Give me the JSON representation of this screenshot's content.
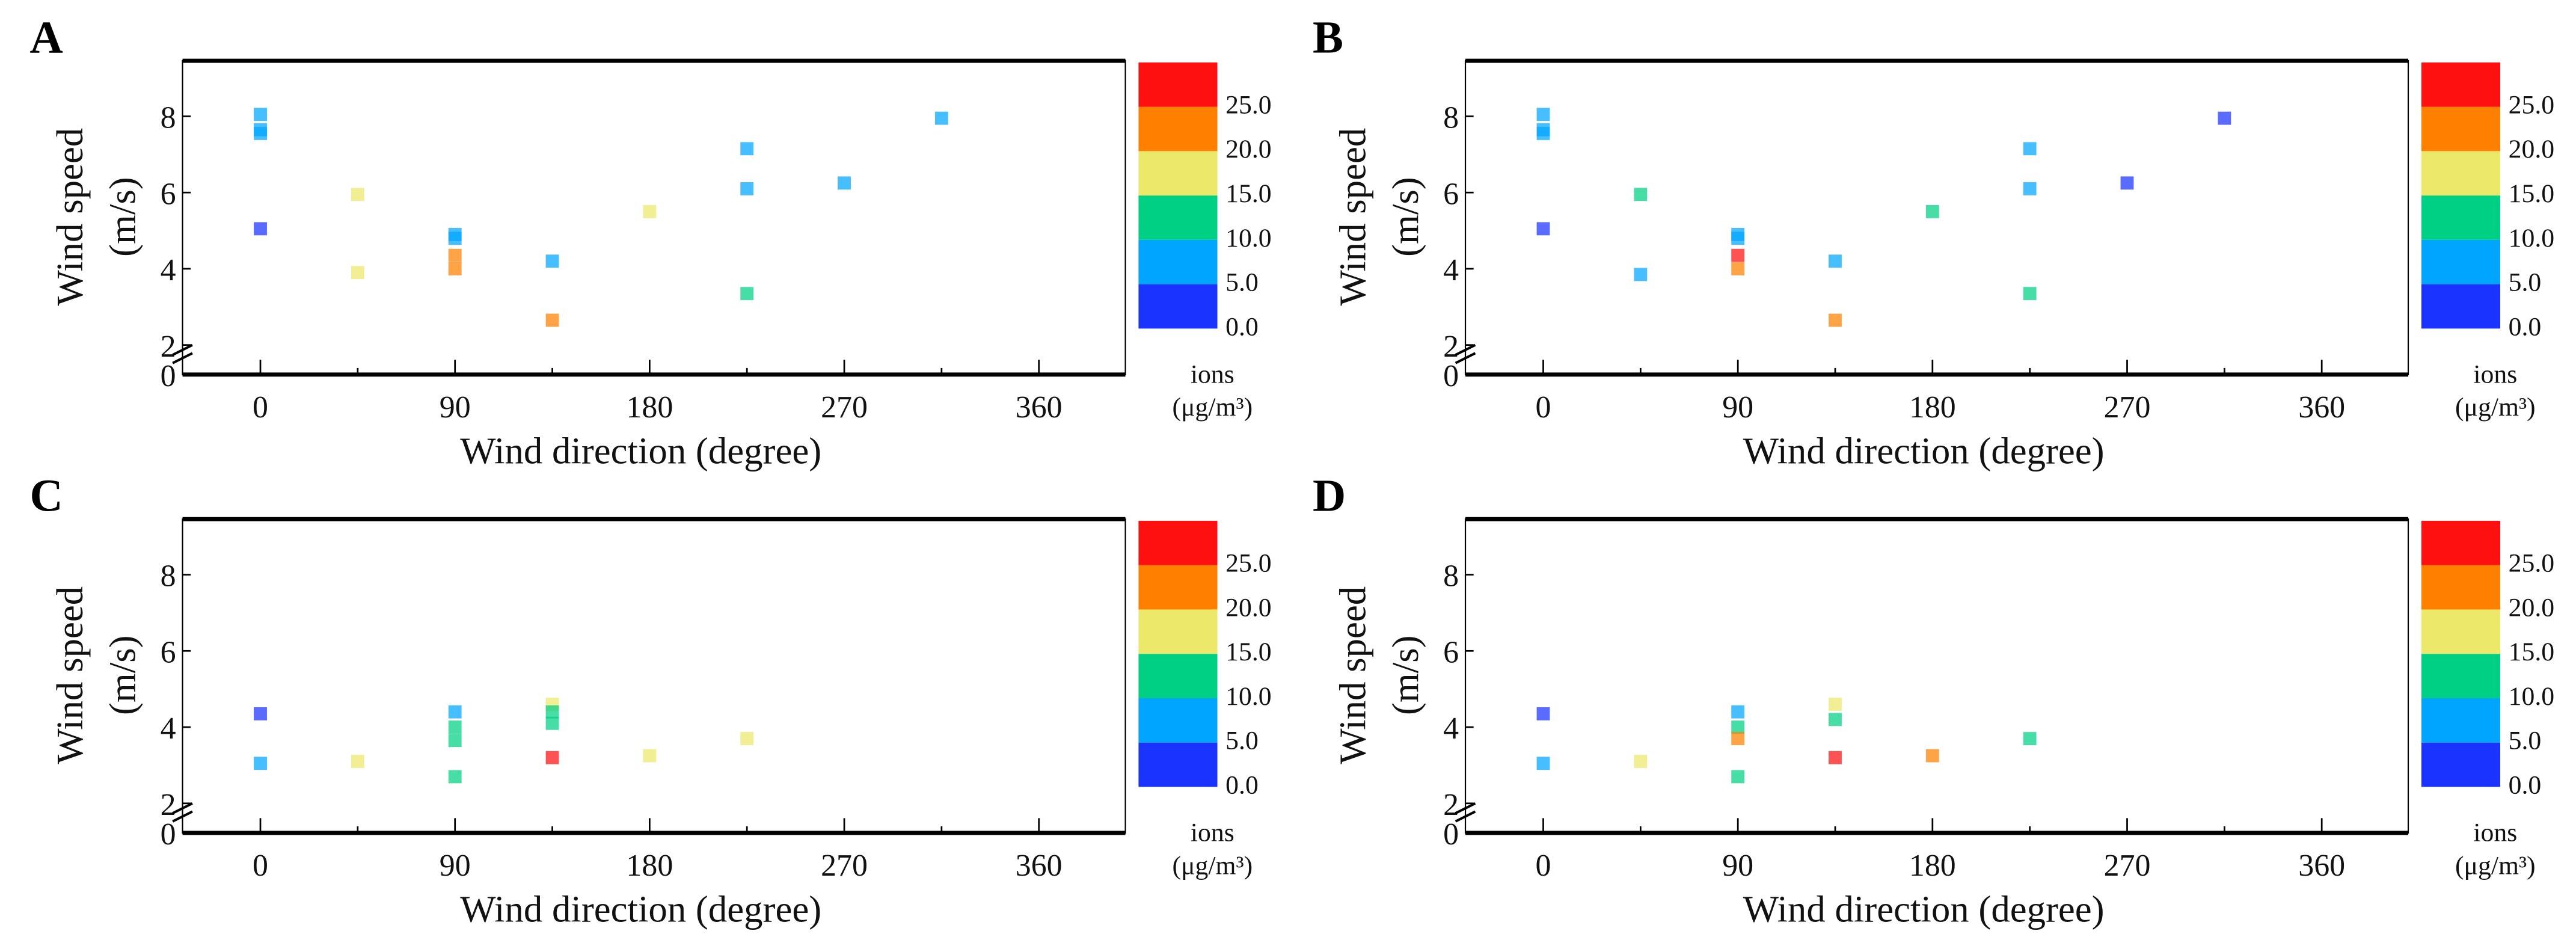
{
  "chart_data": [
    {
      "panel": "A",
      "type": "scatter",
      "xlabel": "Wind direction  (degree)",
      "ylabel": "Wind speed",
      "ylabel_unit": "(m/s)",
      "xticks": [
        0,
        90,
        180,
        270,
        360
      ],
      "yticks": [
        0,
        2,
        4,
        6,
        8
      ],
      "xlim": [
        -36,
        400
      ],
      "ylim": [
        0,
        9.5
      ],
      "y_axis_break": 2,
      "colorbar": {
        "title": "ions",
        "unit": "(μg/m³)",
        "ticks": [
          "0.0",
          "5.0",
          "10.0",
          "15.0",
          "20.0",
          "25.0"
        ]
      },
      "points": [
        [
          0,
          8.05,
          7.5
        ],
        [
          0,
          7.65,
          7.5
        ],
        [
          0,
          7.55,
          7.5
        ],
        [
          0,
          5.05,
          2.5
        ],
        [
          45,
          5.95,
          17.5
        ],
        [
          45,
          3.9,
          17.5
        ],
        [
          90,
          4.9,
          7.5
        ],
        [
          90,
          4.8,
          7.5
        ],
        [
          90,
          4.35,
          22.5
        ],
        [
          90,
          4.0,
          22.5
        ],
        [
          135,
          4.2,
          7.5
        ],
        [
          135,
          2.65,
          22.5
        ],
        [
          180,
          5.5,
          17.5
        ],
        [
          225,
          7.15,
          7.5
        ],
        [
          225,
          6.1,
          7.5
        ],
        [
          225,
          3.35,
          12.5
        ],
        [
          270,
          6.25,
          7.5
        ],
        [
          315,
          7.95,
          7.5
        ]
      ]
    },
    {
      "panel": "B",
      "type": "scatter",
      "xlabel": "Wind direction  (degree)",
      "ylabel": "Wind speed",
      "ylabel_unit": "(m/s)",
      "xticks": [
        0,
        90,
        180,
        270,
        360
      ],
      "yticks": [
        0,
        2,
        4,
        6,
        8
      ],
      "xlim": [
        -36,
        400
      ],
      "ylim": [
        0,
        9.5
      ],
      "y_axis_break": 2,
      "colorbar": {
        "title": "ions",
        "unit": "(μg/m³)",
        "ticks": [
          "0.0",
          "5.0",
          "10.0",
          "15.0",
          "20.0",
          "25.0"
        ]
      },
      "points": [
        [
          0,
          8.05,
          7.5
        ],
        [
          0,
          7.65,
          7.5
        ],
        [
          0,
          7.55,
          7.5
        ],
        [
          0,
          5.05,
          2.5
        ],
        [
          45,
          5.95,
          12.5
        ],
        [
          45,
          3.85,
          7.5
        ],
        [
          90,
          4.9,
          7.5
        ],
        [
          90,
          4.8,
          7.5
        ],
        [
          90,
          4.35,
          27.5
        ],
        [
          90,
          4.0,
          22.5
        ],
        [
          135,
          4.2,
          7.5
        ],
        [
          135,
          2.65,
          22.5
        ],
        [
          180,
          5.5,
          12.5
        ],
        [
          225,
          7.15,
          7.5
        ],
        [
          225,
          6.1,
          7.5
        ],
        [
          225,
          3.35,
          12.5
        ],
        [
          270,
          6.25,
          2.5
        ],
        [
          315,
          7.95,
          2.5
        ]
      ]
    },
    {
      "panel": "C",
      "type": "scatter",
      "xlabel": "Wind direction  (degree)",
      "ylabel": "Wind speed",
      "ylabel_unit": "(m/s)",
      "xticks": [
        0,
        90,
        180,
        270,
        360
      ],
      "yticks": [
        0,
        2,
        4,
        6,
        8
      ],
      "xlim": [
        -36,
        400
      ],
      "ylim": [
        0,
        9.5
      ],
      "y_axis_break": 2,
      "colorbar": {
        "title": "ions",
        "unit": "(μg/m³)",
        "ticks": [
          "0.0",
          "5.0",
          "10.0",
          "15.0",
          "20.0",
          "25.0"
        ]
      },
      "points": [
        [
          0,
          4.35,
          2.5
        ],
        [
          0,
          3.05,
          7.5
        ],
        [
          45,
          3.1,
          17.5
        ],
        [
          90,
          4.4,
          7.5
        ],
        [
          90,
          4.0,
          12.5
        ],
        [
          90,
          3.65,
          12.5
        ],
        [
          90,
          2.7,
          12.5
        ],
        [
          135,
          4.6,
          17.5
        ],
        [
          135,
          4.4,
          12.5
        ],
        [
          135,
          4.1,
          12.5
        ],
        [
          135,
          3.2,
          27.5
        ],
        [
          180,
          3.25,
          17.5
        ],
        [
          225,
          3.7,
          17.5
        ]
      ]
    },
    {
      "panel": "D",
      "type": "scatter",
      "xlabel": "Wind direction  (degree)",
      "ylabel": "Wind speed",
      "ylabel_unit": "(m/s)",
      "xticks": [
        0,
        90,
        180,
        270,
        360
      ],
      "yticks": [
        0,
        2,
        4,
        6,
        8
      ],
      "xlim": [
        -36,
        400
      ],
      "ylim": [
        0,
        9.5
      ],
      "y_axis_break": 2,
      "colorbar": {
        "title": "ions",
        "unit": "(μg/m³)",
        "ticks": [
          "0.0",
          "5.0",
          "10.0",
          "15.0",
          "20.0",
          "25.0"
        ]
      },
      "points": [
        [
          0,
          4.35,
          2.5
        ],
        [
          0,
          3.05,
          7.5
        ],
        [
          45,
          3.1,
          17.5
        ],
        [
          90,
          4.4,
          7.5
        ],
        [
          90,
          4.0,
          12.5
        ],
        [
          90,
          3.7,
          22.5
        ],
        [
          90,
          2.7,
          12.5
        ],
        [
          135,
          4.6,
          17.5
        ],
        [
          135,
          4.2,
          12.5
        ],
        [
          135,
          3.2,
          27.5
        ],
        [
          180,
          3.25,
          22.5
        ],
        [
          225,
          3.7,
          12.5
        ]
      ]
    }
  ],
  "colors": [
    "#1a33ff",
    "#00a5ff",
    "#00d084",
    "#ece86a",
    "#ff8000",
    "#ff1010"
  ]
}
